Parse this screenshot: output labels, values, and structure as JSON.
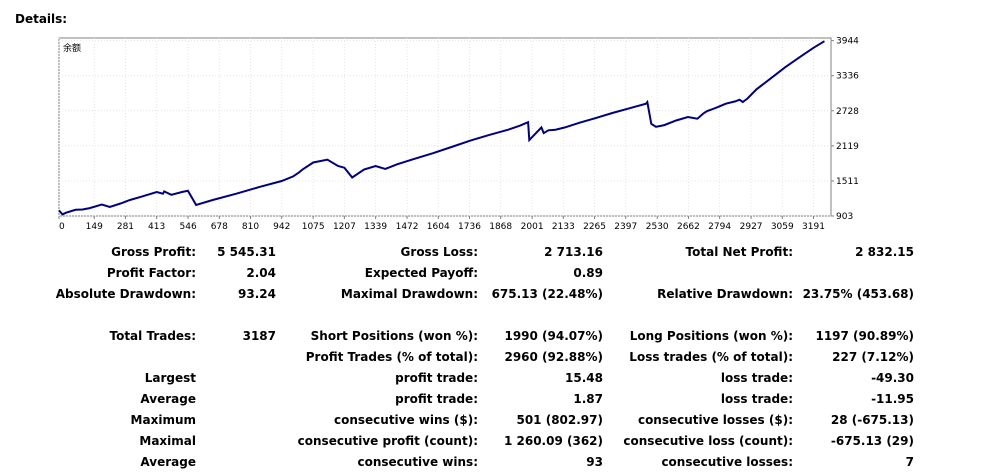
{
  "header": {
    "title": "Details:"
  },
  "chart_data": {
    "type": "line",
    "title": "余额",
    "xlabel": "",
    "ylabel": "",
    "x_ticks": [
      0,
      149,
      281,
      413,
      546,
      678,
      810,
      942,
      1075,
      1207,
      1339,
      1472,
      1604,
      1736,
      1868,
      2001,
      2133,
      2265,
      2397,
      2530,
      2662,
      2794,
      2927,
      3059,
      3191
    ],
    "y_ticks": [
      903,
      1511,
      2119,
      2728,
      3336,
      3944
    ],
    "xlim": [
      0,
      3265
    ],
    "ylim": [
      903,
      3990
    ],
    "grid": true,
    "series_color": "#000080",
    "series": [
      {
        "x": [
          0,
          15,
          30,
          70,
          100,
          130,
          181,
          215,
          260,
          300,
          350,
          413,
          440,
          445,
          475,
          520,
          545,
          580,
          650,
          750,
          850,
          942,
          990,
          1015,
          1030,
          1075,
          1135,
          1180,
          1207,
          1240,
          1290,
          1339,
          1380,
          1430,
          1500,
          1580,
          1660,
          1740,
          1820,
          1900,
          1950,
          1984,
          1989,
          2040,
          2050,
          2070,
          2100,
          2140,
          2200,
          2270,
          2340,
          2420,
          2482,
          2488,
          2505,
          2525,
          2560,
          2610,
          2660,
          2700,
          2725,
          2740,
          2760,
          2785,
          2820,
          2860,
          2878,
          2892,
          2912,
          2950,
          3010,
          3070,
          3130,
          3191,
          3237
        ],
        "y": [
          1000,
          930,
          960,
          1010,
          1015,
          1040,
          1100,
          1060,
          1120,
          1180,
          1240,
          1320,
          1290,
          1330,
          1270,
          1320,
          1340,
          1095,
          1180,
          1290,
          1410,
          1510,
          1590,
          1660,
          1710,
          1830,
          1880,
          1770,
          1740,
          1570,
          1710,
          1770,
          1720,
          1800,
          1890,
          1990,
          2100,
          2210,
          2310,
          2400,
          2470,
          2530,
          2220,
          2440,
          2340,
          2390,
          2400,
          2440,
          2520,
          2600,
          2690,
          2780,
          2850,
          2880,
          2500,
          2450,
          2480,
          2560,
          2620,
          2590,
          2680,
          2720,
          2750,
          2790,
          2850,
          2890,
          2920,
          2880,
          2940,
          3100,
          3290,
          3480,
          3650,
          3820,
          3935
        ]
      }
    ]
  },
  "stats": {
    "row1": {
      "l1": "Gross Profit:",
      "v1": "5 545.31",
      "l2": "Gross Loss:",
      "v2": "2 713.16",
      "l3": "Total Net Profit:",
      "v3": "2 832.15"
    },
    "row2": {
      "l1": "Profit Factor:",
      "v1": "2.04",
      "l2": "Expected Payoff:",
      "v2": "0.89"
    },
    "row3": {
      "l1": "Absolute Drawdown:",
      "v1": "93.24",
      "l2": "Maximal Drawdown:",
      "v2": "675.13 (22.48%)",
      "l3": "Relative Drawdown:",
      "v3": "23.75% (453.68)"
    },
    "row4": {
      "l1": "Total Trades:",
      "v1": "3187",
      "l2": "Short Positions (won %):",
      "v2": "1990 (94.07%)",
      "l3": "Long Positions (won %):",
      "v3": "1197 (90.89%)"
    },
    "row5": {
      "l2": "Profit Trades (% of total):",
      "v2": "2960 (92.88%)",
      "l3": "Loss trades (% of total):",
      "v3": "227 (7.12%)"
    },
    "row6": {
      "l1": "Largest",
      "l2": "profit trade:",
      "v2": "15.48",
      "l3": "loss trade:",
      "v3": "-49.30"
    },
    "row7": {
      "l1": "Average",
      "l2": "profit trade:",
      "v2": "1.87",
      "l3": "loss trade:",
      "v3": "-11.95"
    },
    "row8": {
      "l1": "Maximum",
      "l2": "consecutive wins ($):",
      "v2": "501 (802.97)",
      "l3": "consecutive losses ($):",
      "v3": "28 (-675.13)"
    },
    "row9": {
      "l1": "Maximal",
      "l2": "consecutive profit (count):",
      "v2": "1 260.09 (362)",
      "l3": "consecutive loss (count):",
      "v3": "-675.13 (29)"
    },
    "row10": {
      "l1": "Average",
      "l2": "consecutive wins:",
      "v2": "93",
      "l3": "consecutive losses:",
      "v3": "7"
    }
  }
}
